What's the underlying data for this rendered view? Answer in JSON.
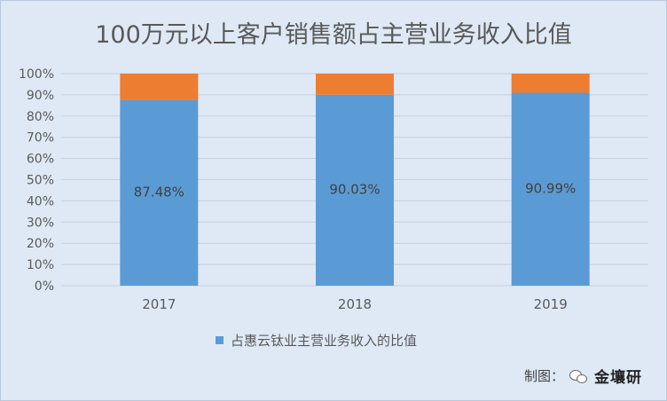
{
  "chart_data": {
    "type": "bar",
    "stacked": true,
    "title": "100万元以上客户销售额占主营业务收入比值",
    "categories": [
      "2017",
      "2018",
      "2019"
    ],
    "series": [
      {
        "name": "占惠云钛业主营业务收入的比值",
        "values": [
          87.48,
          90.03,
          90.99
        ],
        "labels": [
          "87.48%",
          "90.03%",
          "90.99%"
        ],
        "color": "#5b9bd5"
      },
      {
        "values": [
          12.52,
          9.97,
          9.01
        ],
        "color": "#ed7d31"
      }
    ],
    "ylim": [
      0,
      100
    ],
    "y_ticks": [
      "0%",
      "10%",
      "20%",
      "30%",
      "40%",
      "50%",
      "60%",
      "70%",
      "80%",
      "90%",
      "100%"
    ],
    "grid": true,
    "legend": "bottom"
  },
  "footer": {
    "credit_label": "制图：",
    "icon": "wechat-icon",
    "brand": "金壤研"
  },
  "colors": {
    "background": "#dfe9f5",
    "grid": "#c3cfdc",
    "text": "#595959"
  }
}
